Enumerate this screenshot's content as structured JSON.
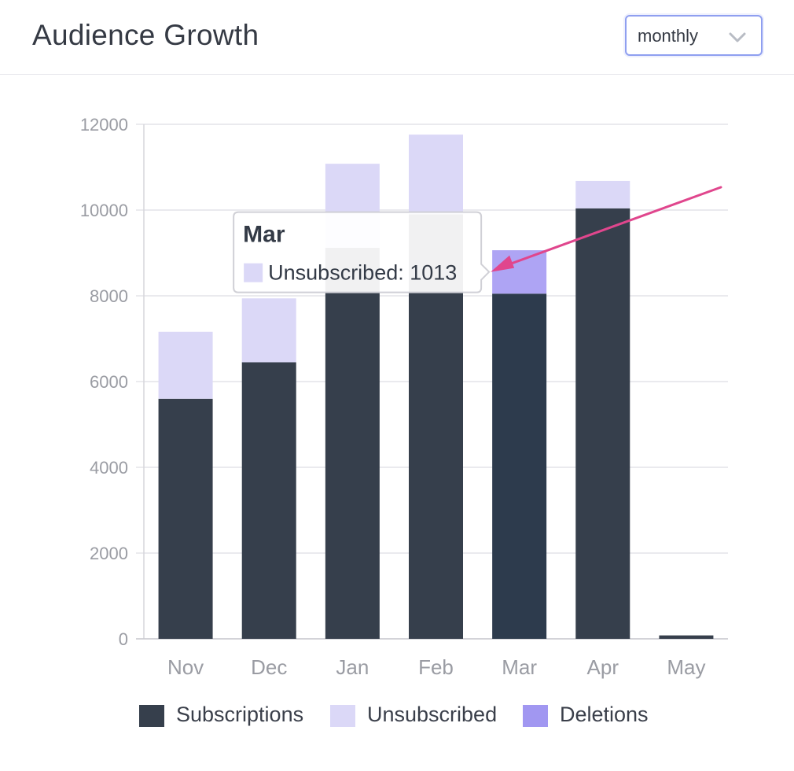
{
  "header": {
    "title": "Audience Growth",
    "period_select": {
      "value": "monthly"
    }
  },
  "colors": {
    "subscriptions": "#363f4c",
    "subscriptions_hover": "#2d3b4d",
    "unsubscribed": "#dbd8f7",
    "deletions": "#a197f1",
    "grid": "#e4e4e8",
    "axis_text": "#9a9ca3",
    "annotation_arrow": "#e0468d"
  },
  "chart_data": {
    "type": "bar",
    "stacked": true,
    "categories": [
      "Nov",
      "Dec",
      "Jan",
      "Feb",
      "Mar",
      "Apr",
      "May"
    ],
    "series": [
      {
        "name": "Subscriptions",
        "values": [
          5600,
          6450,
          9120,
          9900,
          8050,
          10040,
          80
        ]
      },
      {
        "name": "Unsubscribed",
        "values": [
          1560,
          1490,
          1960,
          1860,
          1013,
          640,
          0
        ]
      },
      {
        "name": "Deletions",
        "values": [
          0,
          0,
          0,
          0,
          0,
          0,
          0
        ]
      }
    ],
    "ylim": [
      0,
      12000
    ],
    "yticks": [
      0,
      2000,
      4000,
      6000,
      8000,
      10000,
      12000
    ],
    "grid": true,
    "legend_position": "bottom",
    "tooltip": {
      "category": "Mar",
      "series": "Unsubscribed",
      "value": 1013,
      "title": "Mar",
      "text": "Unsubscribed: 1013"
    },
    "hovered_category": "Mar"
  },
  "legend": {
    "items": [
      "Subscriptions",
      "Unsubscribed",
      "Deletions"
    ]
  }
}
